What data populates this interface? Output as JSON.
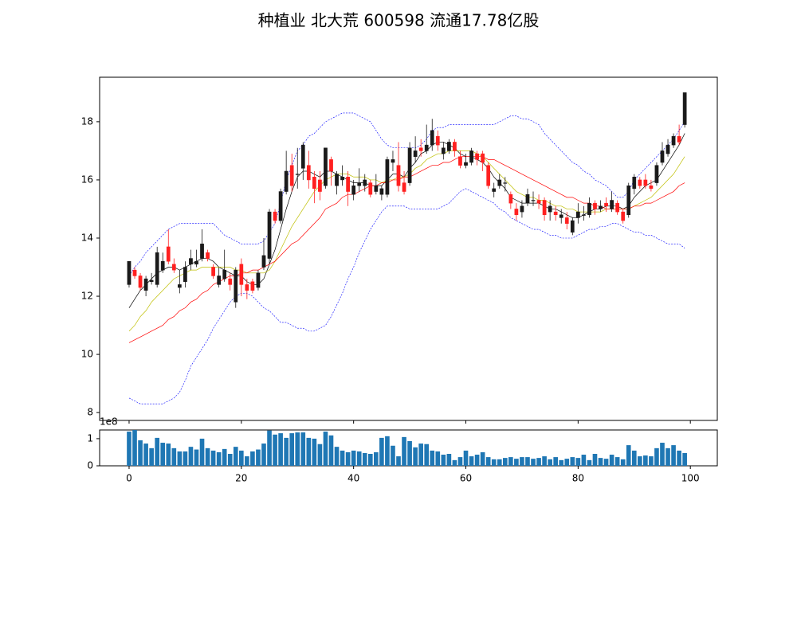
{
  "chart_data": [
    {
      "type": "candlestick",
      "title": "种植业 北大荒 600598 流通17.78亿股",
      "x": [
        0,
        1,
        2,
        3,
        4,
        5,
        6,
        7,
        8,
        9,
        10,
        11,
        12,
        13,
        14,
        15,
        16,
        17,
        18,
        19,
        20,
        21,
        22,
        23,
        24,
        25,
        26,
        27,
        28,
        29,
        30,
        31,
        32,
        33,
        34,
        35,
        36,
        37,
        38,
        39,
        40,
        41,
        42,
        43,
        44,
        45,
        46,
        47,
        48,
        49,
        50,
        51,
        52,
        53,
        54,
        55,
        56,
        57,
        58,
        59,
        60,
        61,
        62,
        63,
        64,
        65,
        66,
        67,
        68,
        69,
        70,
        71,
        72,
        73,
        74,
        75,
        76,
        77,
        78,
        79,
        80,
        81,
        82,
        83,
        84,
        85,
        86,
        87,
        88,
        89,
        90,
        91,
        92,
        93,
        94,
        95,
        96,
        97,
        98,
        99
      ],
      "open": [
        12.4,
        12.9,
        12.7,
        12.2,
        12.5,
        12.4,
        12.9,
        13.7,
        13.1,
        12.3,
        12.5,
        13.1,
        13.1,
        13.3,
        13.5,
        13.0,
        12.4,
        12.6,
        12.6,
        11.8,
        13.1,
        12.4,
        12.5,
        12.3,
        13.0,
        13.3,
        14.9,
        14.6,
        15.6,
        16.5,
        16.2,
        16.4,
        16.5,
        16.1,
        16.0,
        15.8,
        16.7,
        15.8,
        16.0,
        16.1,
        15.5,
        15.8,
        15.8,
        15.9,
        15.6,
        15.5,
        15.5,
        16.6,
        16.5,
        15.9,
        15.9,
        16.8,
        17.1,
        17.0,
        17.2,
        17.5,
        16.9,
        17.0,
        17.3,
        16.8,
        16.5,
        16.6,
        16.9,
        16.9,
        16.5,
        15.6,
        15.8,
        15.9,
        15.5,
        15.0,
        14.9,
        15.2,
        15.3,
        15.3,
        15.3,
        14.9,
        14.9,
        14.7,
        14.7,
        14.2,
        14.7,
        14.8,
        14.8,
        15.2,
        15.0,
        15.2,
        15.0,
        15.2,
        14.9,
        14.8,
        15.7,
        16.0,
        16.0,
        15.8,
        15.9,
        16.6,
        16.9,
        17.2,
        17.5,
        17.9
      ],
      "high": [
        13.2,
        13.0,
        12.8,
        12.7,
        12.8,
        13.7,
        13.5,
        14.3,
        13.3,
        12.9,
        13.2,
        13.6,
        13.6,
        14.3,
        13.6,
        13.1,
        13.0,
        13.6,
        12.8,
        13.0,
        13.3,
        12.6,
        12.6,
        12.9,
        14.0,
        15.0,
        15.0,
        15.7,
        17.0,
        16.9,
        17.1,
        17.3,
        17.0,
        16.3,
        16.3,
        17.1,
        16.8,
        16.3,
        16.5,
        16.3,
        16.0,
        16.4,
        16.2,
        16.0,
        16.2,
        15.8,
        16.8,
        17.0,
        17.3,
        16.3,
        17.3,
        17.5,
        17.4,
        17.9,
        18.1,
        17.7,
        17.3,
        17.4,
        17.4,
        17.0,
        16.9,
        17.1,
        17.0,
        17.0,
        16.6,
        15.9,
        16.2,
        16.1,
        15.6,
        15.2,
        15.3,
        15.7,
        15.6,
        15.5,
        15.4,
        15.3,
        15.1,
        15.0,
        14.9,
        14.7,
        15.2,
        15.1,
        15.4,
        15.3,
        15.3,
        15.4,
        15.6,
        15.3,
        15.0,
        15.9,
        16.2,
        16.1,
        16.2,
        16.0,
        16.6,
        17.3,
        17.4,
        17.6,
        17.9,
        19.0
      ],
      "low": [
        12.3,
        12.6,
        12.2,
        12.0,
        12.4,
        12.3,
        12.8,
        13.1,
        12.8,
        12.1,
        12.3,
        12.9,
        13.0,
        13.2,
        13.2,
        12.6,
        12.3,
        12.5,
        12.2,
        11.6,
        12.0,
        11.9,
        12.1,
        12.2,
        12.9,
        13.1,
        14.5,
        14.5,
        15.5,
        15.6,
        15.7,
        16.0,
        15.7,
        15.2,
        15.3,
        15.7,
        15.8,
        15.5,
        15.8,
        15.1,
        15.3,
        15.6,
        15.6,
        15.4,
        15.5,
        15.3,
        15.4,
        16.3,
        15.6,
        15.5,
        15.8,
        16.6,
        16.8,
        16.9,
        17.0,
        17.0,
        16.7,
        16.9,
        16.8,
        16.4,
        16.4,
        16.5,
        16.5,
        16.3,
        15.7,
        15.4,
        15.7,
        15.6,
        15.0,
        14.6,
        14.7,
        15.1,
        15.1,
        15.0,
        14.6,
        14.6,
        14.6,
        14.5,
        14.3,
        14.1,
        14.5,
        14.6,
        14.7,
        14.8,
        14.9,
        14.9,
        14.9,
        14.8,
        14.5,
        14.7,
        15.5,
        15.7,
        15.7,
        15.6,
        15.8,
        16.5,
        16.8,
        17.1,
        17.2,
        17.8
      ],
      "close": [
        13.2,
        12.7,
        12.3,
        12.6,
        12.55,
        13.5,
        13.2,
        13.2,
        12.9,
        12.4,
        13.0,
        13.3,
        13.2,
        13.8,
        13.3,
        12.7,
        12.7,
        12.9,
        12.4,
        12.9,
        12.4,
        12.2,
        12.2,
        12.8,
        13.4,
        14.9,
        14.6,
        15.6,
        16.3,
        15.8,
        16.2,
        17.2,
        16.0,
        15.7,
        15.6,
        17.1,
        16.3,
        16.2,
        16.1,
        15.6,
        15.8,
        15.9,
        16.0,
        15.5,
        15.8,
        15.7,
        16.7,
        16.7,
        15.8,
        15.6,
        17.1,
        17.0,
        17.0,
        17.2,
        17.7,
        17.2,
        17.1,
        17.3,
        17.0,
        16.5,
        16.6,
        17.0,
        16.7,
        16.6,
        15.8,
        15.7,
        16.0,
        15.9,
        15.2,
        14.8,
        15.1,
        15.5,
        15.3,
        15.2,
        14.8,
        15.1,
        14.8,
        14.8,
        14.5,
        14.6,
        14.9,
        14.8,
        15.2,
        15.0,
        15.1,
        15.1,
        15.3,
        14.9,
        14.6,
        15.8,
        16.1,
        15.8,
        15.8,
        15.7,
        16.5,
        17.0,
        17.2,
        17.5,
        17.3,
        19.0
      ],
      "up_color": "#1a1a1a",
      "down_color": "#ff2020",
      "lines": [
        {
          "color": "#000000",
          "dashed": false,
          "values": [
            11.6,
            11.9,
            12.2,
            12.4,
            12.6,
            12.8,
            12.9,
            13.0,
            13.0,
            12.9,
            13.0,
            13.1,
            13.2,
            13.3,
            13.3,
            13.2,
            13.0,
            12.9,
            12.8,
            12.7,
            12.7,
            12.5,
            12.4,
            12.4,
            12.6,
            13.1,
            13.6,
            14.3,
            15.0,
            15.6,
            16.1,
            16.3,
            16.3,
            16.2,
            16.1,
            16.3,
            16.3,
            16.2,
            16.1,
            16.0,
            15.9,
            15.9,
            15.9,
            15.8,
            15.8,
            15.8,
            16.0,
            16.2,
            16.2,
            16.1,
            16.4,
            16.6,
            16.9,
            17.0,
            17.2,
            17.3,
            17.3,
            17.2,
            17.1,
            16.9,
            16.8,
            16.8,
            16.7,
            16.6,
            16.4,
            16.1,
            15.9,
            15.7,
            15.4,
            15.3,
            15.2,
            15.2,
            15.2,
            15.2,
            15.1,
            15.0,
            15.0,
            14.9,
            14.8,
            14.7,
            14.7,
            14.8,
            14.9,
            15.0,
            15.0,
            15.1,
            15.1,
            15.1,
            15.0,
            15.1,
            15.4,
            15.6,
            15.8,
            15.9,
            16.0,
            16.3,
            16.6,
            16.9,
            17.2,
            17.6
          ]
        },
        {
          "color": "#bfbf00",
          "dashed": false,
          "values": [
            10.8,
            11.0,
            11.3,
            11.5,
            11.8,
            12.0,
            12.2,
            12.4,
            12.6,
            12.7,
            12.8,
            12.9,
            12.9,
            13.0,
            13.0,
            13.0,
            13.0,
            13.0,
            13.0,
            12.9,
            12.9,
            12.8,
            12.8,
            12.8,
            12.8,
            12.9,
            13.2,
            13.6,
            14.0,
            14.4,
            14.7,
            15.0,
            15.3,
            15.6,
            15.8,
            16.0,
            16.1,
            16.2,
            16.2,
            16.2,
            16.1,
            16.1,
            16.1,
            16.0,
            16.0,
            15.9,
            16.0,
            16.0,
            16.1,
            16.1,
            16.2,
            16.4,
            16.5,
            16.7,
            16.8,
            16.9,
            16.9,
            17.0,
            17.0,
            17.0,
            17.0,
            17.0,
            16.9,
            16.8,
            16.6,
            16.4,
            16.2,
            16.0,
            15.8,
            15.6,
            15.5,
            15.4,
            15.4,
            15.3,
            15.3,
            15.2,
            15.1,
            15.1,
            15.0,
            15.0,
            14.9,
            14.9,
            14.9,
            14.9,
            14.9,
            15.0,
            15.0,
            15.0,
            15.0,
            15.0,
            15.1,
            15.2,
            15.3,
            15.4,
            15.6,
            15.8,
            16.0,
            16.2,
            16.5,
            16.8
          ]
        },
        {
          "color": "#ff0000",
          "dashed": false,
          "values": [
            10.4,
            10.5,
            10.6,
            10.7,
            10.8,
            10.9,
            11.0,
            11.2,
            11.3,
            11.5,
            11.6,
            11.8,
            11.9,
            12.1,
            12.2,
            12.4,
            12.5,
            12.6,
            12.7,
            12.7,
            12.8,
            12.8,
            12.9,
            12.9,
            13.0,
            13.1,
            13.2,
            13.4,
            13.6,
            13.8,
            13.9,
            14.1,
            14.3,
            14.5,
            14.7,
            15.0,
            15.1,
            15.2,
            15.4,
            15.5,
            15.5,
            15.6,
            15.7,
            15.8,
            15.8,
            15.9,
            15.9,
            16.0,
            16.0,
            16.1,
            16.1,
            16.2,
            16.3,
            16.4,
            16.5,
            16.5,
            16.6,
            16.6,
            16.7,
            16.8,
            16.8,
            16.8,
            16.8,
            16.8,
            16.7,
            16.7,
            16.6,
            16.5,
            16.4,
            16.3,
            16.2,
            16.1,
            16.0,
            15.9,
            15.8,
            15.7,
            15.6,
            15.5,
            15.4,
            15.4,
            15.3,
            15.2,
            15.2,
            15.1,
            15.1,
            15.0,
            15.0,
            15.0,
            15.0,
            15.0,
            15.1,
            15.1,
            15.2,
            15.2,
            15.3,
            15.4,
            15.5,
            15.6,
            15.8,
            15.9
          ]
        },
        {
          "color": "#0000ff",
          "dashed": true,
          "values": [
            12.7,
            13.0,
            13.2,
            13.5,
            13.7,
            13.9,
            14.1,
            14.3,
            14.4,
            14.5,
            14.5,
            14.5,
            14.5,
            14.5,
            14.5,
            14.5,
            14.3,
            14.1,
            14.0,
            13.9,
            13.8,
            13.8,
            13.8,
            13.8,
            13.9,
            14.2,
            14.5,
            15.2,
            16.0,
            16.5,
            17.0,
            17.2,
            17.5,
            17.6,
            17.8,
            18.0,
            18.1,
            18.2,
            18.3,
            18.3,
            18.3,
            18.2,
            18.1,
            18.0,
            17.7,
            17.4,
            17.2,
            17.1,
            17.1,
            17.1,
            17.1,
            17.1,
            17.2,
            17.4,
            17.7,
            17.8,
            17.8,
            17.9,
            17.9,
            17.9,
            17.9,
            17.9,
            17.9,
            17.9,
            17.9,
            17.9,
            18.0,
            18.1,
            18.2,
            18.2,
            18.1,
            18.1,
            18.0,
            17.9,
            17.6,
            17.4,
            17.2,
            17.0,
            16.8,
            16.6,
            16.5,
            16.3,
            16.2,
            16.0,
            15.9,
            15.8,
            15.6,
            15.4,
            15.4,
            15.6,
            16.0,
            16.2,
            16.4,
            16.6,
            16.8,
            17.0,
            17.2,
            17.4,
            17.7,
            18.0
          ]
        },
        {
          "color": "#0000ff",
          "dashed": true,
          "values": [
            8.5,
            8.4,
            8.3,
            8.3,
            8.3,
            8.3,
            8.3,
            8.4,
            8.5,
            8.7,
            9.1,
            9.6,
            9.9,
            10.2,
            10.5,
            10.9,
            11.2,
            11.5,
            11.8,
            12.0,
            12.1,
            12.1,
            12.0,
            11.8,
            11.6,
            11.5,
            11.3,
            11.1,
            11.1,
            11.0,
            10.9,
            10.9,
            10.8,
            10.8,
            10.9,
            11.0,
            11.3,
            11.7,
            12.1,
            12.6,
            13.0,
            13.5,
            13.9,
            14.3,
            14.6,
            14.9,
            15.1,
            15.1,
            15.1,
            15.1,
            15.0,
            15.0,
            15.0,
            15.0,
            15.0,
            15.0,
            15.1,
            15.2,
            15.4,
            15.6,
            15.7,
            15.6,
            15.5,
            15.4,
            15.3,
            15.2,
            15.0,
            14.9,
            14.7,
            14.6,
            14.5,
            14.4,
            14.3,
            14.3,
            14.2,
            14.1,
            14.1,
            14.0,
            14.0,
            14.0,
            14.1,
            14.2,
            14.3,
            14.3,
            14.4,
            14.4,
            14.5,
            14.5,
            14.4,
            14.3,
            14.2,
            14.2,
            14.1,
            14.1,
            14.0,
            13.9,
            13.8,
            13.8,
            13.8,
            13.65
          ]
        }
      ],
      "xlim": [
        -5.25,
        104.8
      ],
      "ylim": [
        7.73,
        19.53
      ],
      "yticks": [
        8,
        10,
        12,
        14,
        16,
        18
      ]
    },
    {
      "type": "bar",
      "values": [
        1.26,
        1.32,
        0.94,
        0.82,
        0.65,
        1.03,
        0.85,
        0.82,
        0.65,
        0.53,
        0.53,
        0.7,
        0.6,
        1.0,
        0.65,
        0.56,
        0.5,
        0.62,
        0.44,
        0.7,
        0.56,
        0.35,
        0.53,
        0.6,
        0.82,
        1.3,
        1.15,
        1.2,
        1.03,
        1.2,
        1.23,
        1.23,
        1.03,
        1.0,
        0.8,
        1.26,
        1.12,
        0.7,
        0.56,
        0.5,
        0.56,
        0.53,
        0.47,
        0.44,
        0.5,
        1.03,
        1.09,
        0.74,
        0.35,
        1.06,
        0.91,
        0.68,
        0.82,
        0.8,
        0.56,
        0.53,
        0.41,
        0.44,
        0.21,
        0.32,
        0.56,
        0.35,
        0.41,
        0.5,
        0.32,
        0.24,
        0.24,
        0.29,
        0.32,
        0.26,
        0.32,
        0.32,
        0.26,
        0.29,
        0.35,
        0.24,
        0.32,
        0.21,
        0.26,
        0.32,
        0.29,
        0.41,
        0.21,
        0.44,
        0.29,
        0.26,
        0.41,
        0.32,
        0.24,
        0.76,
        0.56,
        0.35,
        0.38,
        0.35,
        0.65,
        0.85,
        0.65,
        0.76,
        0.56,
        0.47
      ],
      "color": "#1f77b4",
      "axis_multiplier": "1e8",
      "xlim": [
        -5.25,
        104.8
      ],
      "xticks": [
        0,
        20,
        40,
        60,
        80,
        100
      ],
      "ylim": [
        0,
        1.32
      ],
      "yticks": [
        0,
        1
      ]
    }
  ]
}
